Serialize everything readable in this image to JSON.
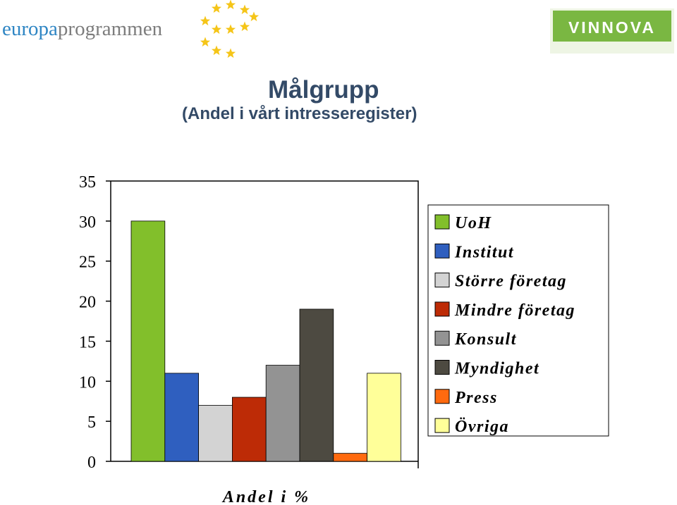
{
  "logos": {
    "europa_text_a": "europa",
    "europa_text_b": "programmen",
    "vinnova_text": "VINNOVA"
  },
  "colors": {
    "title": "#334a67",
    "europa_blue": "#2f86c4",
    "europa_gray": "#8a8a8a",
    "star_yellow": "#f5c518",
    "vinnova_green": "#7ab742"
  },
  "chart_data": {
    "type": "bar",
    "title": "Målgrupp",
    "subtitle": "(Andel i vårt intresseregister)",
    "xlabel": "Andel i %",
    "ylabel": "",
    "ylim": [
      0,
      35
    ],
    "yticks": [
      "0",
      "5",
      "10",
      "15",
      "20",
      "25",
      "30",
      "35"
    ],
    "grid": false,
    "legend_position": "right",
    "categories": [
      "Andel i %"
    ],
    "series": [
      {
        "name": "UoH",
        "value": 30,
        "color": "#82bf2b"
      },
      {
        "name": "Institut",
        "value": 11,
        "color": "#2f5fbf"
      },
      {
        "name": "Större företag",
        "value": 7,
        "color": "#d3d3d3"
      },
      {
        "name": "Mindre företag",
        "value": 8,
        "color": "#bd2b06"
      },
      {
        "name": "Konsult",
        "value": 12,
        "color": "#939393"
      },
      {
        "name": "Myndighet",
        "value": 19,
        "color": "#4d4a41"
      },
      {
        "name": "Press",
        "value": 1,
        "color": "#ff6a0f"
      },
      {
        "name": "Övriga",
        "value": 11,
        "color": "#ffff99"
      }
    ]
  }
}
